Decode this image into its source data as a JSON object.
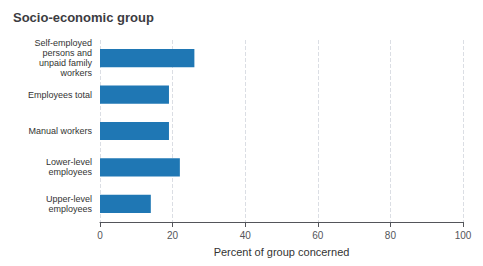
{
  "chart_data": {
    "type": "bar",
    "orientation": "horizontal",
    "title": "Socio-economic group",
    "categories": [
      "Upper-level\nemployees",
      "Lower-level\nemployees",
      "Manual workers",
      "Employees total",
      "Self-employed\npersons and\nunpaid family\nworkers"
    ],
    "values": [
      14,
      22,
      19,
      19,
      26
    ],
    "color": "#1F77B4",
    "xlabel": "Percent of group concerned",
    "xlim": [
      0,
      100
    ],
    "xticks": [
      0,
      20,
      40,
      60,
      80,
      100
    ],
    "grid": true
  }
}
